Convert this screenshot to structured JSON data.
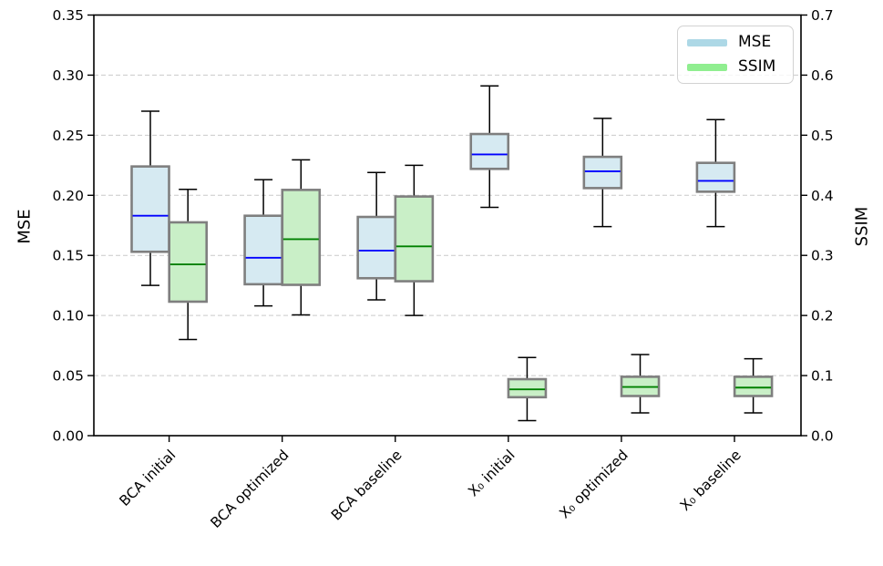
{
  "figure": {
    "background": "#ffffff",
    "left_axis": {
      "label": "MSE",
      "tick_labels": [
        "0.00",
        "0.05",
        "0.10",
        "0.15",
        "0.20",
        "0.25",
        "0.30",
        "0.35"
      ],
      "min": 0,
      "max": 0.35
    },
    "right_axis": {
      "label": "SSIM",
      "tick_labels": [
        "0.0",
        "0.1",
        "0.2",
        "0.3",
        "0.4",
        "0.5",
        "0.6",
        "0.7"
      ],
      "min": 0,
      "max": 0.7
    },
    "grid_color": "#c9c9c9",
    "spine_color": "#000000"
  },
  "chart_data": {
    "type": "boxplot",
    "title": "",
    "xlabel": "",
    "ylabel_left": "MSE",
    "ylabel_right": "SSIM",
    "categories": [
      "BCA initial",
      "BCA optimized",
      "BCA baseline",
      "X₀ initial",
      "X₀ optimized",
      "X₀ baseline"
    ],
    "left_ylim": [
      0,
      0.35
    ],
    "right_ylim": [
      0,
      0.7
    ],
    "grid": "horizontal dashed at every left tick (0.05 steps)",
    "legend_position": "upper right",
    "series": [
      {
        "name": "MSE",
        "axis": "left",
        "fill": "#d6eaf2",
        "legend_color": "#add8e6",
        "edge_color": "#7f7f7f",
        "median_color": "#0000ff",
        "boxes": [
          {
            "whislo": 0.125,
            "q1": 0.153,
            "med": 0.183,
            "q3": 0.224,
            "whishi": 0.27
          },
          {
            "whislo": 0.108,
            "q1": 0.126,
            "med": 0.148,
            "q3": 0.183,
            "whishi": 0.213
          },
          {
            "whislo": 0.113,
            "q1": 0.131,
            "med": 0.154,
            "q3": 0.182,
            "whishi": 0.219
          },
          {
            "whislo": 0.19,
            "q1": 0.222,
            "med": 0.234,
            "q3": 0.251,
            "whishi": 0.291
          },
          {
            "whislo": 0.174,
            "q1": 0.206,
            "med": 0.22,
            "q3": 0.232,
            "whishi": 0.264
          },
          {
            "whislo": 0.174,
            "q1": 0.203,
            "med": 0.212,
            "q3": 0.227,
            "whishi": 0.263
          }
        ]
      },
      {
        "name": "SSIM",
        "axis": "right",
        "fill": "#c9efc7",
        "legend_color": "#90ee90",
        "edge_color": "#7f7f7f",
        "median_color": "#008000",
        "boxes": [
          {
            "whislo": 0.16,
            "q1": 0.223,
            "med": 0.285,
            "q3": 0.355,
            "whishi": 0.41
          },
          {
            "whislo": 0.201,
            "q1": 0.251,
            "med": 0.327,
            "q3": 0.409,
            "whishi": 0.459
          },
          {
            "whislo": 0.2,
            "q1": 0.257,
            "med": 0.315,
            "q3": 0.398,
            "whishi": 0.45
          },
          {
            "whislo": 0.025,
            "q1": 0.064,
            "med": 0.077,
            "q3": 0.094,
            "whishi": 0.13
          },
          {
            "whislo": 0.038,
            "q1": 0.066,
            "med": 0.081,
            "q3": 0.098,
            "whishi": 0.135
          },
          {
            "whislo": 0.038,
            "q1": 0.066,
            "med": 0.08,
            "q3": 0.098,
            "whishi": 0.128
          }
        ]
      }
    ]
  }
}
